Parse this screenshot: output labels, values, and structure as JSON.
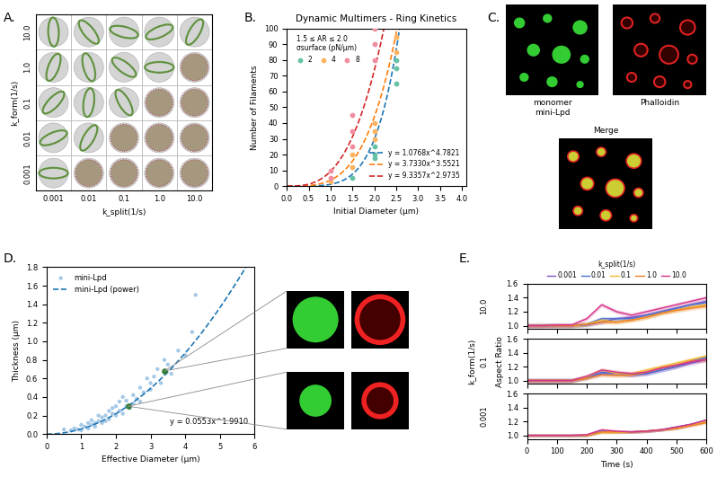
{
  "chart_data": [
    {
      "panel_label": "A.",
      "type": "image_grid",
      "x_label": "k_split(1/s)",
      "y_label": "k_form(1/s)",
      "x_categories": [
        "0.001",
        "0.01",
        "0.1",
        "1.0",
        "10.0"
      ],
      "y_categories": [
        "0.001",
        "0.01",
        "0.1",
        "1.0",
        "10.0"
      ]
    },
    {
      "panel_label": "B.",
      "type": "scatter",
      "title": "Dynamic Multimers - Ring Kinetics",
      "x_label": "Initial Diameter (μm)",
      "y_label": "Number of Filaments",
      "xlim": [
        0,
        4.1
      ],
      "xticks": [
        {
          "value": 0,
          "label": "0.0"
        },
        {
          "value": 0.5,
          "label": "0.5"
        },
        {
          "value": 1,
          "label": "1.0"
        },
        {
          "value": 1.5,
          "label": "1.5"
        },
        {
          "value": 2,
          "label": "2.0"
        },
        {
          "value": 2.5,
          "label": "2.5"
        },
        {
          "value": 3,
          "label": "3.0"
        },
        {
          "value": 3.5,
          "label": "3.5"
        },
        {
          "value": 4,
          "label": "4.0"
        }
      ],
      "ylim": [
        0,
        100
      ],
      "yticks": [
        0,
        10,
        20,
        30,
        40,
        50,
        60,
        70,
        80,
        90,
        100
      ],
      "legend": "upper left",
      "legend_title": "1.5 ≤ AR ≤ 2.0\nσsurface (pN/μm)",
      "series": [
        {
          "name": "2",
          "color": "#66c2a5",
          "x": [
            1.5,
            2.0,
            2.0,
            2.0,
            2.5,
            2.5,
            2.5
          ],
          "values": [
            5,
            18,
            20,
            25,
            65,
            75,
            80
          ],
          "fit": {
            "a": 1.0768,
            "b": 4.7821,
            "label": "y = 1.0768x^4.7821",
            "color": "#1f77b4",
            "line_style": "dashed"
          }
        },
        {
          "name": "4",
          "color": "#fdb462",
          "x": [
            1.0,
            1.5,
            1.5,
            2.0,
            2.0,
            2.0,
            2.5,
            2.5
          ],
          "values": [
            3,
            12,
            20,
            30,
            35,
            40,
            85,
            95
          ],
          "fit": {
            "a": 3.733,
            "b": 3.5521,
            "label": "y = 3.7330x^3.5521",
            "color": "#ff7f0e",
            "line_style": "dashed"
          }
        },
        {
          "name": "8",
          "color": "#f28ca0",
          "x": [
            1.0,
            1.0,
            1.5,
            1.5,
            1.5,
            2.0,
            2.0,
            2.0
          ],
          "values": [
            5,
            10,
            25,
            35,
            45,
            80,
            90,
            100
          ],
          "fit": {
            "a": 9.3357,
            "b": 2.9735,
            "label": "y = 9.3357x^2.9735",
            "color": "#d62728",
            "line_style": "dashed"
          }
        }
      ]
    },
    {
      "panel_label": "C.",
      "type": "image",
      "images": [
        {
          "label": "monomer\nmini-Lpd",
          "color": "#33cc33"
        },
        {
          "label": "Phalloidin",
          "color": "#dd2222"
        },
        {
          "label": "Merge",
          "colors": [
            "#33cc33",
            "#dd2222"
          ]
        }
      ]
    },
    {
      "panel_label": "D.",
      "type": "scatter",
      "x_label": "Effective Diameter (μm)",
      "y_label": "Thickness (μm)",
      "xlim": [
        0,
        6
      ],
      "xticks": [
        0,
        1,
        2,
        3,
        4,
        5,
        6
      ],
      "ylim": [
        0,
        1.8
      ],
      "yticks": [
        {
          "value": 0,
          "label": "0.0"
        },
        {
          "value": 0.2,
          "label": "0.2"
        },
        {
          "value": 0.4,
          "label": "0.4"
        },
        {
          "value": 0.6,
          "label": "0.6"
        },
        {
          "value": 0.8,
          "label": "0.8"
        },
        {
          "value": 1.0,
          "label": "1.0"
        },
        {
          "value": 1.2,
          "label": "1.2"
        },
        {
          "value": 1.4,
          "label": "1.4"
        },
        {
          "value": 1.6,
          "label": "1.6"
        },
        {
          "value": 1.8,
          "label": "1.8"
        }
      ],
      "legend": "upper left",
      "series": [
        {
          "name": "mini-Lpd",
          "color": "#7fb2dc",
          "marker": "o",
          "x": [
            0.5,
            0.7,
            0.8,
            0.9,
            1.0,
            1.0,
            1.1,
            1.2,
            1.2,
            1.3,
            1.3,
            1.4,
            1.4,
            1.5,
            1.5,
            1.6,
            1.6,
            1.7,
            1.7,
            1.8,
            1.8,
            1.9,
            1.9,
            2.0,
            2.0,
            2.1,
            2.1,
            2.2,
            2.2,
            2.3,
            2.3,
            2.4,
            2.5,
            2.5,
            2.6,
            2.7,
            2.7,
            2.8,
            2.9,
            3.0,
            3.0,
            3.1,
            3.2,
            3.3,
            3.4,
            3.5,
            3.6,
            3.8,
            4.0,
            4.2,
            4.3
          ],
          "values": [
            0.05,
            0.04,
            0.06,
            0.05,
            0.1,
            0.04,
            0.08,
            0.12,
            0.06,
            0.1,
            0.15,
            0.12,
            0.08,
            0.14,
            0.2,
            0.12,
            0.18,
            0.2,
            0.14,
            0.25,
            0.16,
            0.22,
            0.28,
            0.2,
            0.3,
            0.25,
            0.35,
            0.22,
            0.4,
            0.3,
            0.36,
            0.28,
            0.42,
            0.33,
            0.38,
            0.5,
            0.35,
            0.45,
            0.6,
            0.48,
            0.55,
            0.62,
            0.7,
            0.55,
            0.8,
            0.75,
            0.65,
            0.9,
            0.85,
            1.1,
            1.5
          ]
        },
        {
          "name": "mini-Lpd (power)",
          "type": "line",
          "line_style": "dashed",
          "color": "#1f77b4",
          "fit": {
            "a": 0.0553,
            "b": 1.991
          }
        }
      ],
      "highlight": {
        "x": [
          3.4,
          2.35
        ],
        "values": [
          0.68,
          0.3
        ],
        "color": "#2e7d32"
      },
      "annotations": [
        "y = 0.0553x^1.9910"
      ]
    },
    {
      "panel_label": "E.",
      "type": "line",
      "x_label": "Time (s)",
      "y_label": "Aspect Ratio",
      "row_label": "k_form(1/s)",
      "legend_title": "k_split(1/s)",
      "legend": "lower center",
      "xlim": [
        0,
        600
      ],
      "xticks": [
        0,
        100,
        200,
        300,
        400,
        500,
        600
      ],
      "ylim": [
        0.95,
        1.6
      ],
      "yticks": [
        {
          "value": 1.0,
          "label": "1.0"
        },
        {
          "value": 1.2,
          "label": "1.2"
        },
        {
          "value": 1.4,
          "label": "1.4"
        },
        {
          "value": 1.6,
          "label": "1.6"
        }
      ],
      "x": [
        0,
        50,
        100,
        150,
        200,
        250,
        300,
        350,
        400,
        450,
        500,
        550,
        600
      ],
      "rows": [
        {
          "name": "10.0",
          "series": [
            {
              "name": "0.001",
              "color": "#7b52c7",
              "error": 0.03,
              "values": [
                1.0,
                1.0,
                1.0,
                1.0,
                1.01,
                1.05,
                1.1,
                1.12,
                1.15,
                1.2,
                1.25,
                1.3,
                1.35
              ]
            },
            {
              "name": "0.01",
              "color": "#4c72d0",
              "error": 0.03,
              "values": [
                1.0,
                1.0,
                1.0,
                1.0,
                1.02,
                1.1,
                1.1,
                1.1,
                1.15,
                1.2,
                1.25,
                1.3,
                1.33
              ]
            },
            {
              "name": "0.1",
              "color": "#f2b632",
              "error": 0.03,
              "values": [
                1.0,
                1.0,
                1.0,
                1.0,
                1.02,
                1.08,
                1.05,
                1.08,
                1.12,
                1.18,
                1.22,
                1.27,
                1.3
              ]
            },
            {
              "name": "1.0",
              "color": "#f07f22",
              "error": 0.03,
              "values": [
                1.0,
                1.0,
                1.0,
                1.0,
                1.02,
                1.05,
                1.05,
                1.08,
                1.12,
                1.18,
                1.22,
                1.25,
                1.28
              ]
            },
            {
              "name": "10.0",
              "color": "#d6338a",
              "error": 0.03,
              "values": [
                1.0,
                1.0,
                1.01,
                1.01,
                1.1,
                1.3,
                1.2,
                1.15,
                1.2,
                1.25,
                1.3,
                1.35,
                1.4
              ]
            }
          ]
        },
        {
          "name": "0.1",
          "series": [
            {
              "name": "0.001",
              "color": "#7b52c7",
              "error": 0.03,
              "values": [
                1.0,
                1.0,
                1.0,
                1.0,
                1.05,
                1.1,
                1.1,
                1.08,
                1.1,
                1.15,
                1.2,
                1.25,
                1.3
              ]
            },
            {
              "name": "0.01",
              "color": "#4c72d0",
              "error": 0.03,
              "values": [
                1.0,
                1.0,
                1.0,
                1.0,
                1.04,
                1.12,
                1.1,
                1.08,
                1.1,
                1.15,
                1.2,
                1.28,
                1.33
              ]
            },
            {
              "name": "0.1",
              "color": "#f2b632",
              "error": 0.03,
              "values": [
                1.0,
                1.0,
                1.0,
                1.0,
                1.05,
                1.15,
                1.1,
                1.1,
                1.15,
                1.2,
                1.25,
                1.3,
                1.35
              ]
            },
            {
              "name": "1.0",
              "color": "#f07f22",
              "error": 0.03,
              "values": [
                1.0,
                1.0,
                1.0,
                1.0,
                1.03,
                1.08,
                1.07,
                1.08,
                1.12,
                1.18,
                1.22,
                1.28,
                1.3
              ]
            },
            {
              "name": "10.0",
              "color": "#d6338a",
              "error": 0.03,
              "values": [
                1.0,
                1.0,
                1.0,
                1.0,
                1.06,
                1.15,
                1.12,
                1.1,
                1.12,
                1.18,
                1.22,
                1.27,
                1.3
              ]
            }
          ]
        },
        {
          "name": "0.001",
          "series": [
            {
              "name": "0.001",
              "color": "#7b52c7",
              "error": 0.02,
              "values": [
                1.0,
                1.0,
                1.0,
                1.0,
                1.0,
                1.05,
                1.05,
                1.05,
                1.06,
                1.08,
                1.1,
                1.15,
                1.2
              ]
            },
            {
              "name": "0.01",
              "color": "#4c72d0",
              "error": 0.02,
              "values": [
                1.0,
                1.0,
                1.0,
                1.0,
                1.0,
                1.06,
                1.05,
                1.05,
                1.06,
                1.08,
                1.12,
                1.16,
                1.22
              ]
            },
            {
              "name": "0.1",
              "color": "#f2b632",
              "error": 0.02,
              "values": [
                1.0,
                1.0,
                1.0,
                1.0,
                1.0,
                1.04,
                1.04,
                1.05,
                1.06,
                1.08,
                1.1,
                1.15,
                1.2
              ]
            },
            {
              "name": "1.0",
              "color": "#f07f22",
              "error": 0.02,
              "values": [
                1.0,
                1.0,
                1.0,
                1.0,
                1.0,
                1.05,
                1.05,
                1.05,
                1.06,
                1.08,
                1.1,
                1.14,
                1.18
              ]
            },
            {
              "name": "10.0",
              "color": "#d6338a",
              "error": 0.02,
              "values": [
                1.0,
                1.0,
                1.0,
                1.0,
                1.01,
                1.08,
                1.06,
                1.05,
                1.06,
                1.08,
                1.12,
                1.16,
                1.22
              ]
            }
          ]
        }
      ]
    }
  ]
}
